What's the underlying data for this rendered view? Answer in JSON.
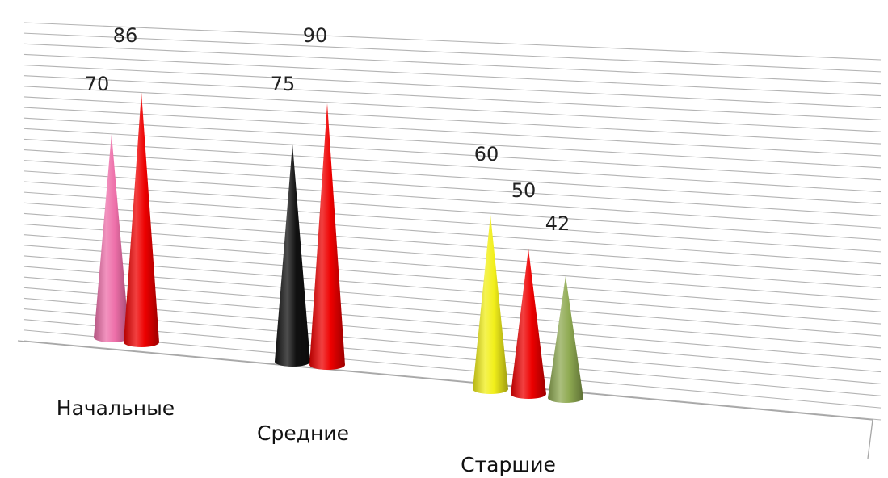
{
  "chart_data": {
    "type": "bar",
    "shape": "cone-3d",
    "title": "",
    "xlabel": "",
    "ylabel": "",
    "ylim": [
      0,
      100
    ],
    "grid": true,
    "legend": "none",
    "groups": [
      {
        "category": "Начальные",
        "bars": [
          {
            "value": 70,
            "label": "70",
            "color": "#ee6fa9"
          },
          {
            "value": 86,
            "label": "86",
            "color": "#ee0000"
          }
        ]
      },
      {
        "category": "Средние",
        "bars": [
          {
            "value": 75,
            "label": "75",
            "color": "#111111"
          },
          {
            "value": 90,
            "label": "90",
            "color": "#ee0000"
          }
        ]
      },
      {
        "category": "Старшие",
        "bars": [
          {
            "value": 60,
            "label": "60",
            "color": "#f2ef1a"
          },
          {
            "value": 50,
            "label": "50",
            "color": "#ee0000"
          },
          {
            "value": 42,
            "label": "42",
            "color": "#8faa52"
          }
        ]
      }
    ]
  }
}
